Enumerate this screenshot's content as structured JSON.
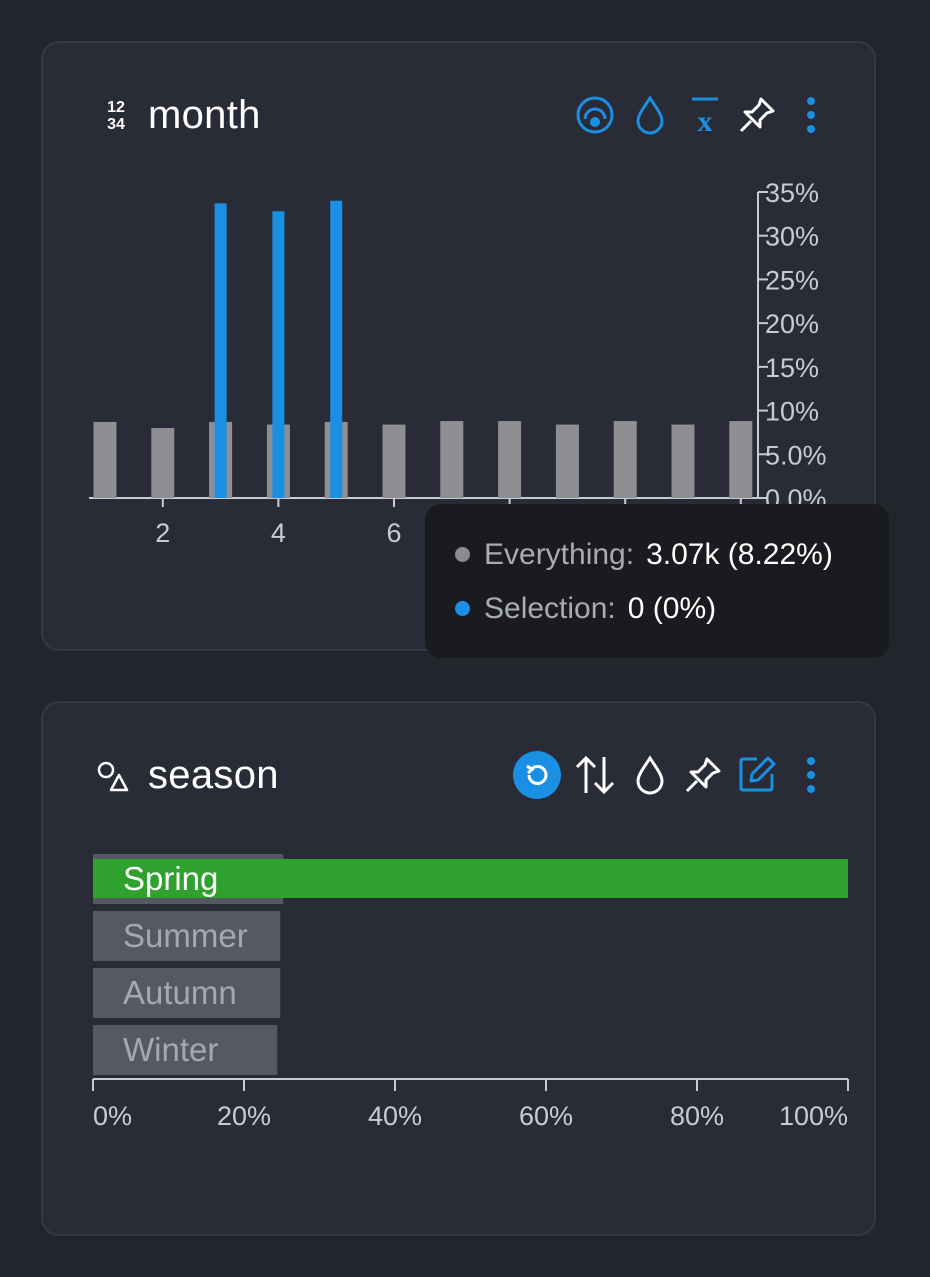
{
  "month_card": {
    "title": "month",
    "type_icon": "numeric-type-icon",
    "type_icon_text": [
      "12",
      "34"
    ],
    "toolbar": [
      "filter-circle-icon",
      "droplet-icon",
      "x-bar-mean-icon",
      "pin-icon",
      "more-vertical-icon"
    ]
  },
  "season_card": {
    "title": "season",
    "type_icon": "categorical-shapes-icon",
    "toolbar": [
      "reset-icon",
      "sort-icon",
      "droplet-icon",
      "pin-icon",
      "edit-icon",
      "more-vertical-icon"
    ]
  },
  "tooltip": {
    "everything_label": "Everything:",
    "everything_value": "3.07k (8.22%)",
    "selection_label": "Selection:",
    "selection_value": "0 (0%)",
    "everything_color": "#8a8a8f",
    "selection_color": "#1a8fe3"
  },
  "colors": {
    "background": "#22252c",
    "card": "#292c36",
    "accent_blue": "#1a8fe3",
    "gray_bar": "#8e8e93",
    "green": "#2fa12f"
  },
  "chart_data": [
    {
      "type": "bar",
      "x": [
        1,
        2,
        3,
        4,
        5,
        6,
        7,
        8,
        9,
        10,
        11,
        12
      ],
      "x_ticks": [
        "2",
        "4",
        "6"
      ],
      "y_ticks": [
        "0.0%",
        "5.0%",
        "10%",
        "15%",
        "20%",
        "25%",
        "30%",
        "35%"
      ],
      "ylim": [
        0,
        35
      ],
      "series": [
        {
          "name": "Everything",
          "values": [
            8.7,
            8.0,
            8.7,
            8.4,
            8.7,
            8.4,
            8.8,
            8.8,
            8.4,
            8.8,
            8.4,
            8.8
          ]
        },
        {
          "name": "Selection",
          "values": [
            0,
            0,
            33.7,
            32.8,
            34.0,
            0,
            0,
            0,
            0,
            0,
            0,
            0
          ]
        }
      ]
    },
    {
      "type": "bar",
      "orientation": "horizontal",
      "categories": [
        "Spring",
        "Summer",
        "Autumn",
        "Winter"
      ],
      "x_ticks": [
        "0%",
        "20%",
        "40%",
        "60%",
        "80%",
        "100%"
      ],
      "xlim": [
        0,
        100
      ],
      "series": [
        {
          "name": "Everything",
          "values": [
            25.2,
            24.8,
            24.8,
            24.4
          ]
        },
        {
          "name": "Selection",
          "values": [
            100,
            0,
            0,
            0
          ]
        }
      ]
    }
  ]
}
